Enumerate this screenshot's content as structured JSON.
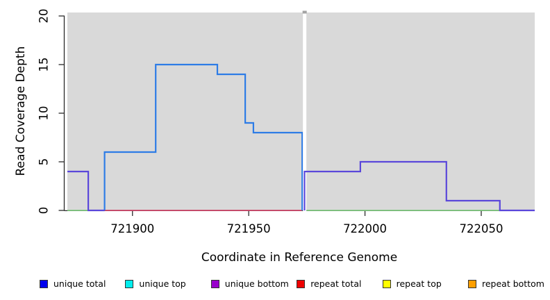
{
  "chart_data": {
    "type": "line",
    "subtype": "step-coverage",
    "title": "",
    "xlabel": "Coordinate in Reference Genome",
    "ylabel": "Read Coverage Depth",
    "xlim": [
      721872,
      722073
    ],
    "ylim": [
      0,
      20.4
    ],
    "x_ticks": [
      721900,
      721950,
      722000,
      722050
    ],
    "y_ticks": [
      0,
      5,
      10,
      15,
      20
    ],
    "grid": false,
    "panel_bg": "#d9d9d9",
    "axis_color": "#2a2a2a",
    "gap": {
      "x1": 721973.3,
      "x2": 721974.8,
      "cap_color": "#a3a3a3"
    },
    "series": [
      {
        "name": "baseline green",
        "color": "#7ec97e",
        "width": 1.7,
        "segments": [
          [
            [
              721872,
              0
            ],
            [
              721881,
              0
            ]
          ],
          [
            [
              721974.8,
              0
            ],
            [
              722058,
              0
            ]
          ]
        ]
      },
      {
        "name": "repeat total",
        "color": "#cf4468",
        "width": 1.7,
        "segments": [
          [
            [
              721888,
              0
            ],
            [
              721973,
              0
            ]
          ]
        ]
      },
      {
        "name": "unique total",
        "color": "#2d7ce6",
        "width": 2.2,
        "segments": [
          [
            [
              721888,
              0
            ],
            [
              721888,
              6
            ],
            [
              721910,
              6
            ],
            [
              721910,
              15
            ],
            [
              721936.5,
              15
            ],
            [
              721936.5,
              14
            ],
            [
              721948.5,
              14
            ],
            [
              721948.5,
              9
            ],
            [
              721952,
              9
            ],
            [
              721952,
              8
            ],
            [
              721973,
              8
            ],
            [
              721973,
              0
            ]
          ]
        ]
      },
      {
        "name": "unique bottom",
        "color": "#5a47da",
        "width": 2.2,
        "segments": [
          [
            [
              721872,
              4
            ],
            [
              721881,
              4
            ],
            [
              721881,
              0
            ],
            [
              721888,
              0
            ]
          ],
          [
            [
              721974,
              0
            ],
            [
              721974,
              4
            ],
            [
              721998,
              4
            ],
            [
              721998,
              5
            ],
            [
              722035,
              5
            ],
            [
              722035,
              1
            ],
            [
              722058,
              1
            ],
            [
              722058,
              0
            ],
            [
              722073,
              0
            ]
          ]
        ]
      }
    ],
    "legend_position": "bottom",
    "legend": [
      {
        "label": "unique total",
        "color": "#0000ee"
      },
      {
        "label": "unique top",
        "color": "#00eeee"
      },
      {
        "label": "unique bottom",
        "color": "#9900cc"
      },
      {
        "label": "repeat total",
        "color": "#ee0000"
      },
      {
        "label": "repeat top",
        "color": "#ffff00"
      },
      {
        "label": "repeat bottom",
        "color": "#ff9f00"
      }
    ]
  }
}
